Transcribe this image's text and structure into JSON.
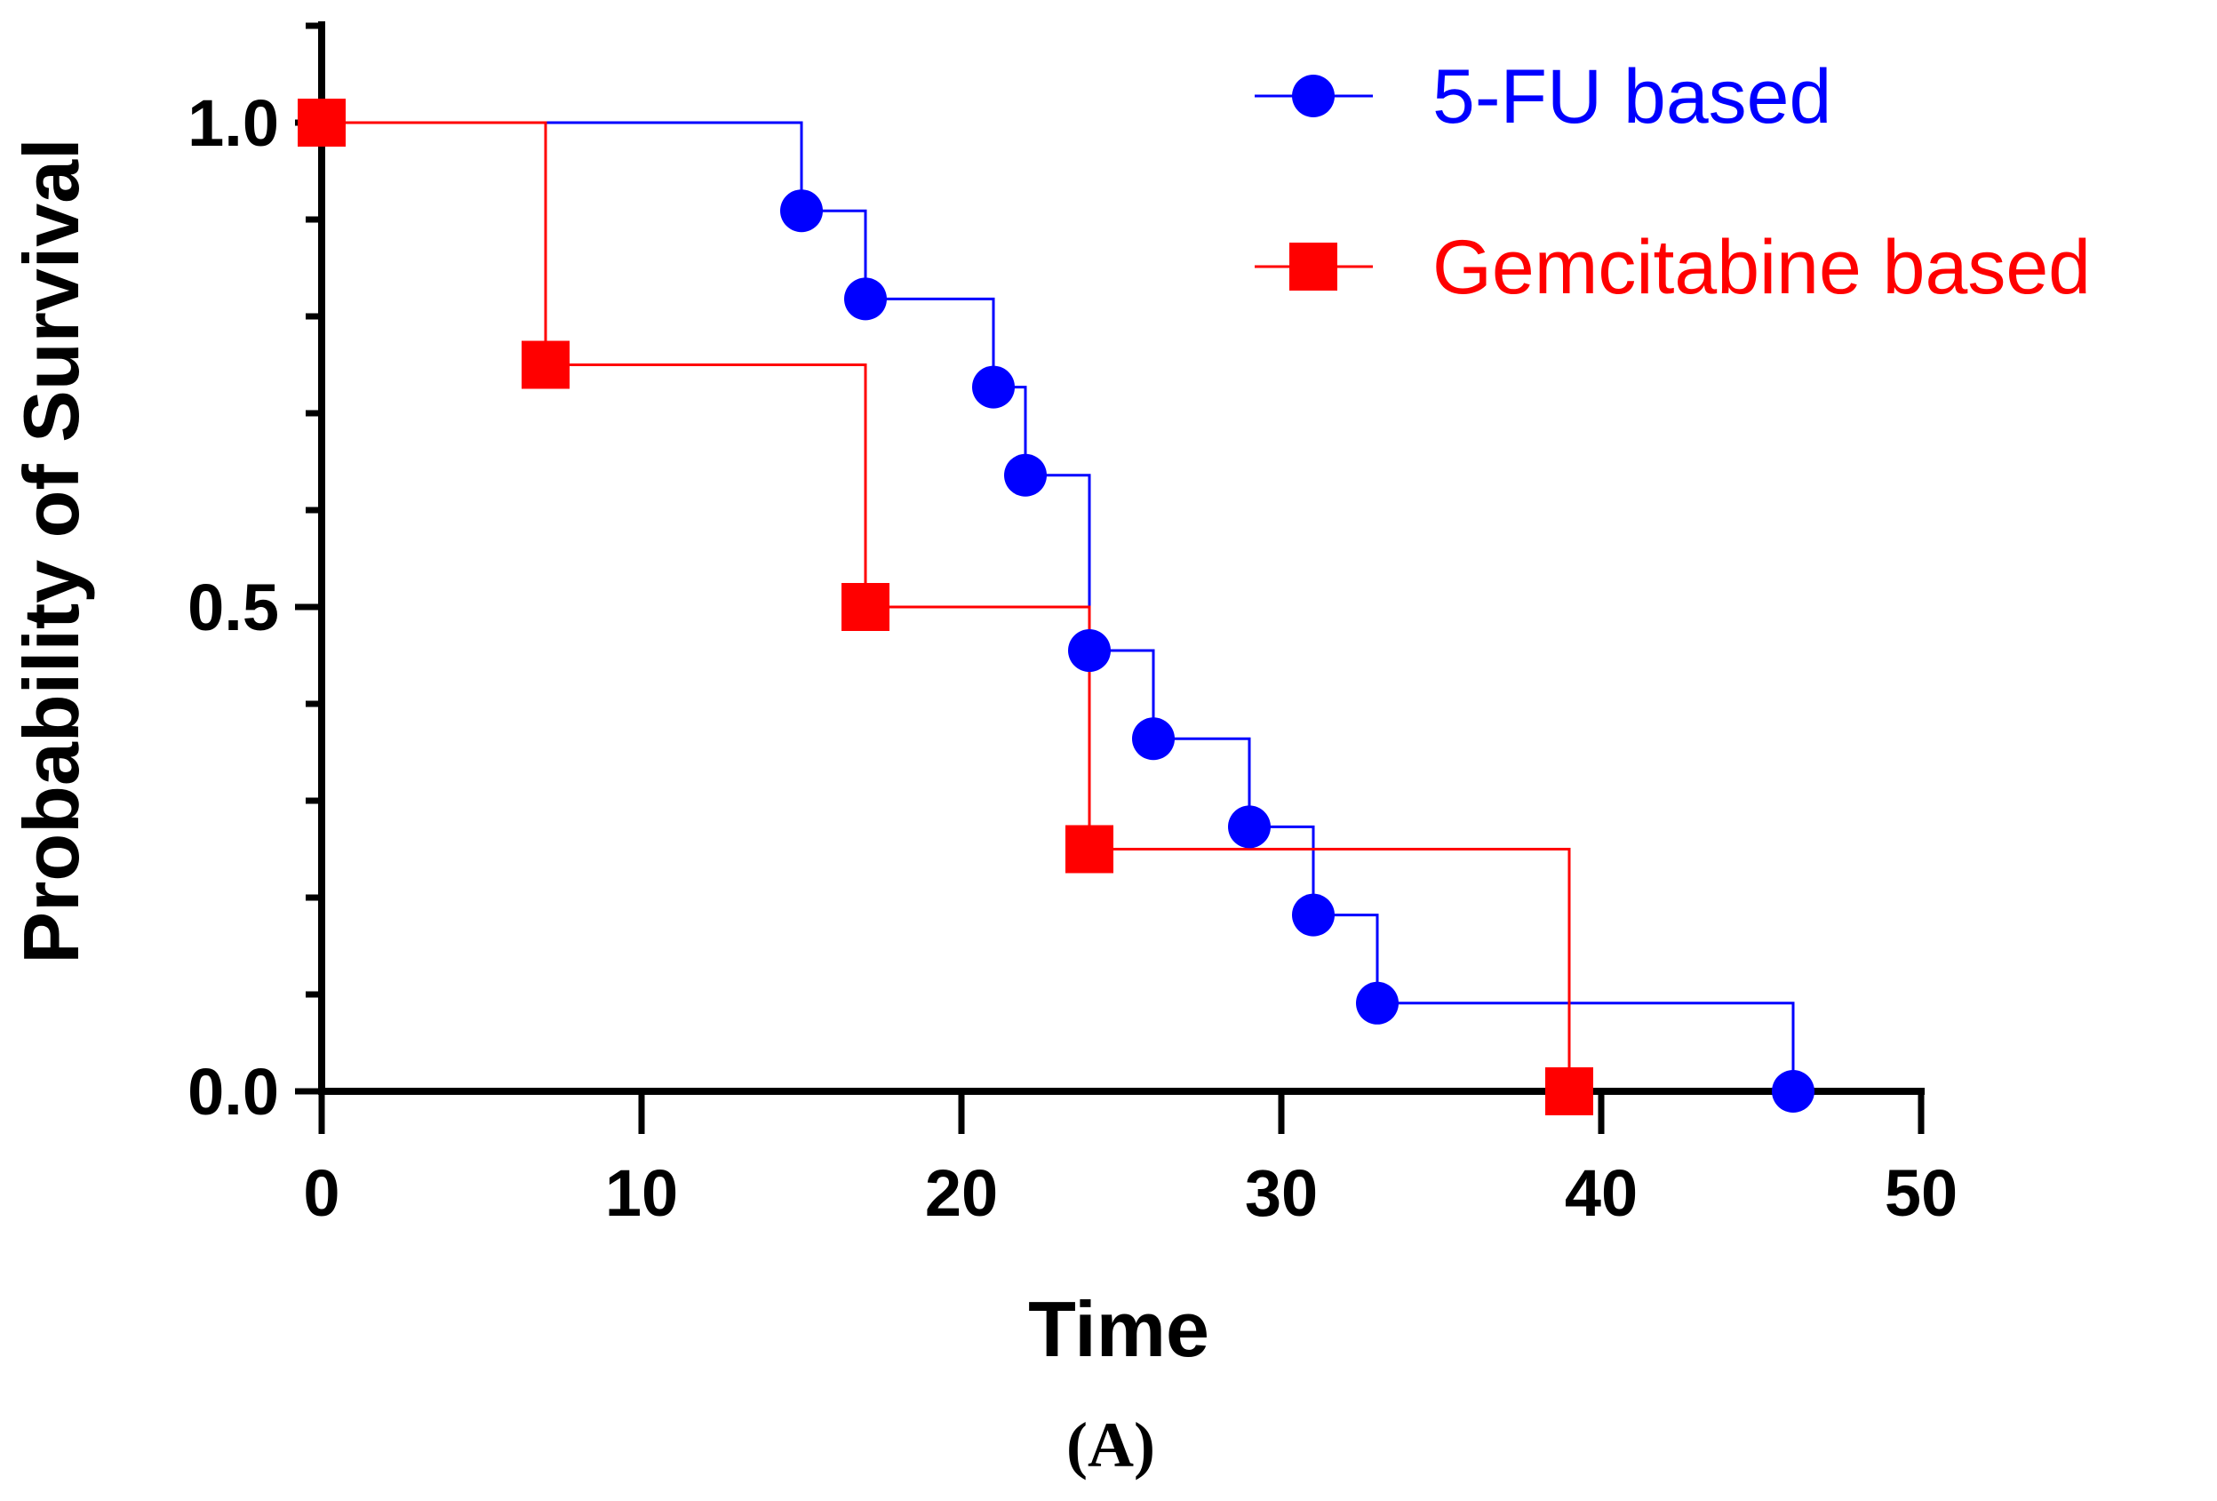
{
  "chart_data": {
    "type": "line",
    "subtype": "kaplan-meier step",
    "xlabel": "Time",
    "ylabel": "Probability of Survival",
    "xlim": [
      0,
      50
    ],
    "ylim": [
      0,
      1.1
    ],
    "x_ticks": [
      0,
      10,
      20,
      30,
      40,
      50
    ],
    "x_tick_labels": [
      "0",
      "10",
      "20",
      "30",
      "40",
      "50"
    ],
    "y_ticks": [
      0,
      0.5,
      1.0
    ],
    "y_tick_labels": [
      "0.0",
      "0.5",
      "1.0"
    ],
    "grid": false,
    "legend_position": "top-right",
    "panel_label": "(A)",
    "series": [
      {
        "name": "5-FU based",
        "color": "#0000ff",
        "marker": "circle",
        "x": [
          0,
          15,
          17,
          21,
          22,
          24,
          26,
          29,
          31,
          33,
          46
        ],
        "y": [
          1.0,
          0.909,
          0.818,
          0.727,
          0.636,
          0.455,
          0.364,
          0.273,
          0.182,
          0.091,
          0.0
        ]
      },
      {
        "name": "Gemcitabine based",
        "color": "#ff0000",
        "marker": "square",
        "x": [
          0,
          7,
          17,
          24,
          39
        ],
        "y": [
          1.0,
          0.75,
          0.5,
          0.25,
          0.0
        ]
      }
    ]
  }
}
